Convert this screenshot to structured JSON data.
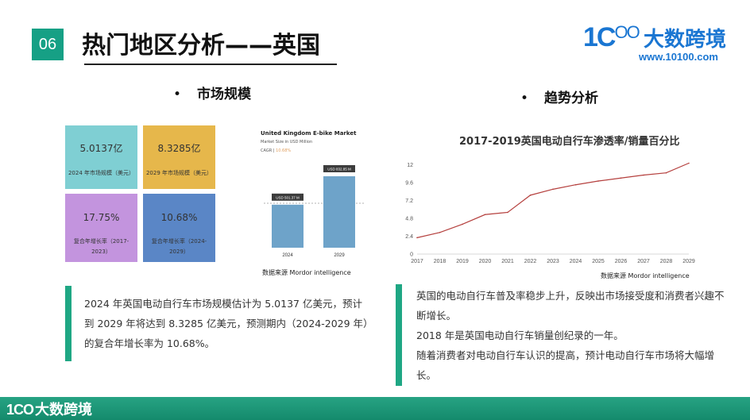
{
  "header": {
    "badge": "06",
    "title": "热门地区分析——英国"
  },
  "logo": {
    "mark": "1C",
    "mark_sup": "OO",
    "name": "大数跨境",
    "url": "www.10100.com"
  },
  "left_section": {
    "heading": "市场规模",
    "tiles": [
      {
        "value": "5.0137亿",
        "label": "2024 年市场规模（美元）",
        "color": "#7fcfd3"
      },
      {
        "value": "8.3285亿",
        "label": "2029 年市场规模（美元）",
        "color": "#e6b74b"
      },
      {
        "value": "17.75%",
        "label": "复合年增长率（2017-2023）",
        "color": "#c394de"
      },
      {
        "value": "10.68%",
        "label": "复合年增长率（2024-2029）",
        "color": "#5a86c6"
      }
    ],
    "mini_chart": {
      "title": "United Kingdom E-bike Market",
      "subtitle": "Market Size in USD Million",
      "cagr_label": "CAGR",
      "cagr_value": "10.68%",
      "source": "数据来源  Mordor intelligence"
    },
    "text": "2024 年英国电动自行车市场规模估计为 5.0137 亿美元，预计到 2029 年将达到 8.3285 亿美元，预测期内（2024-2029 年）的复合年增长率为 10.68%。"
  },
  "right_section": {
    "heading": "趋势分析",
    "chart_source": "数据来源  Mordor intelligence",
    "text_lines": [
      "英国的电动自行车普及率稳步上升，反映出市场接受度和消费者兴趣不断增长。",
      "2018 年是英国电动自行车销量创纪录的一年。",
      "随着消费者对电动自行车认识的提高，预计电动自行车市场将大幅增长。"
    ]
  },
  "footer": {
    "mark": "1CO",
    "name": "大数跨境"
  },
  "colors": {
    "accent": "#16a085",
    "brand": "#1a76d2",
    "line": "#b5403e",
    "bar": "#6ea3c9"
  },
  "chart_data": [
    {
      "type": "bar",
      "title": "United Kingdom E-bike Market",
      "subtitle": "Market Size in USD Million",
      "categories": [
        "2024",
        "2029"
      ],
      "values": [
        501.37,
        832.85
      ],
      "data_labels": [
        "USD 501.37 M",
        "USD 832.85 M"
      ]
    },
    {
      "type": "line",
      "title": "2017-2019英国电动自行车渗透率/销量百分比",
      "x": [
        "2017",
        "2018",
        "2019",
        "2020",
        "2021",
        "2022",
        "2023",
        "2024",
        "2025",
        "2026",
        "2027",
        "2028",
        "2029"
      ],
      "series": [
        {
          "values": [
            2.2,
            2.9,
            4.0,
            5.3,
            5.6,
            7.9,
            8.7,
            9.3,
            9.8,
            10.2,
            10.6,
            10.9,
            12.2
          ]
        }
      ],
      "yticks": [
        "0",
        "2.4",
        "4.8",
        "7.2",
        "9.6",
        "12"
      ],
      "ylim": [
        0,
        13
      ],
      "grid": false
    }
  ]
}
